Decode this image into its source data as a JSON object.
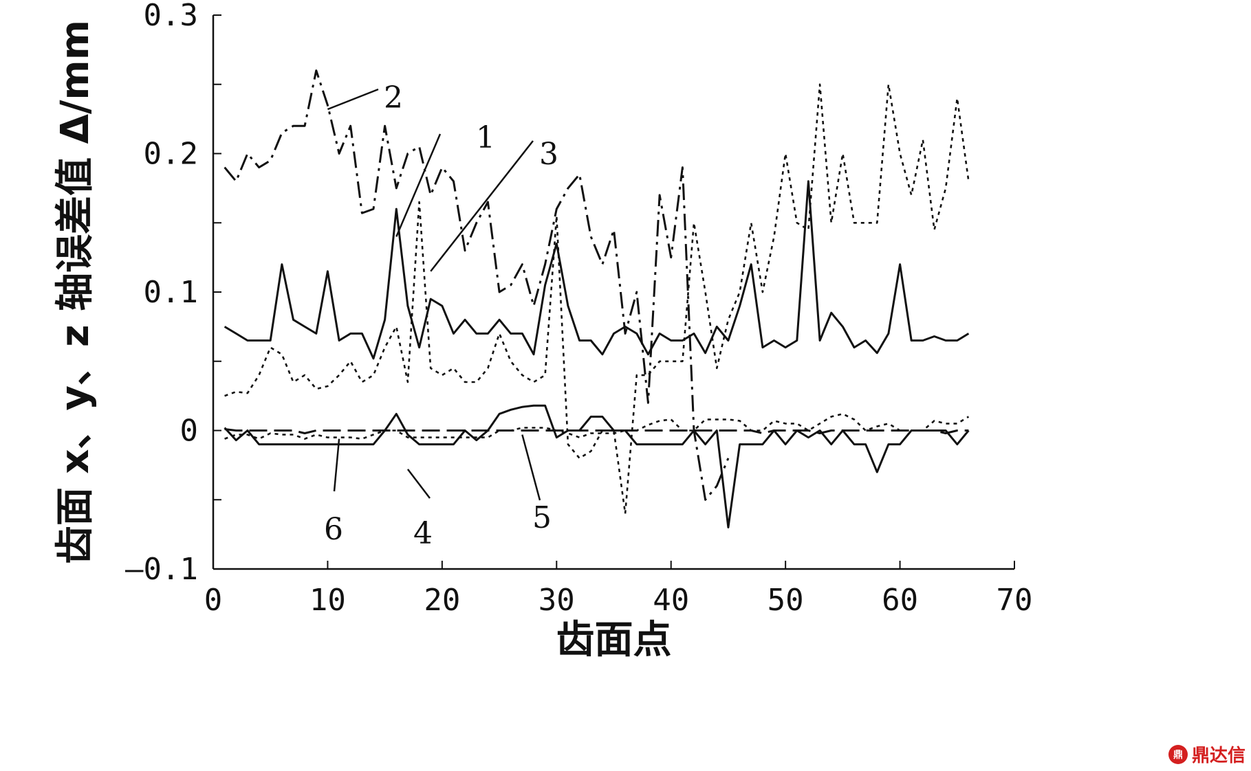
{
  "chart_data": {
    "type": "line",
    "title": "",
    "xlabel": "齿面点",
    "ylabel": "齿面 x、y、z 轴误差值 Δ/mm",
    "xlim": [
      0,
      70
    ],
    "ylim": [
      -0.1,
      0.3
    ],
    "x_ticks": [
      0,
      10,
      20,
      30,
      40,
      50,
      60,
      70
    ],
    "x_tick_labels": [
      "0",
      "10",
      "20",
      "30",
      "40",
      "50",
      "60",
      "70"
    ],
    "y_ticks": [
      -0.1,
      0,
      0.1,
      0.2,
      0.3
    ],
    "y_tick_labels": [
      "—0.1",
      "0",
      "0.1",
      "0.2",
      "0.3"
    ],
    "grid": false,
    "series": [
      {
        "name": "1",
        "style": "solid",
        "x": [
          1,
          2,
          3,
          4,
          5,
          6,
          7,
          8,
          9,
          10,
          11,
          12,
          13,
          14,
          15,
          16,
          17,
          18,
          19,
          20,
          21,
          22,
          23,
          24,
          25,
          26,
          27,
          28,
          29,
          30,
          31,
          32,
          33,
          34,
          35,
          36,
          37,
          38,
          39,
          40,
          41,
          42,
          43,
          44,
          45,
          46,
          47,
          48,
          49,
          50,
          51,
          52,
          53,
          54,
          55,
          56,
          57,
          58,
          59,
          60,
          61,
          62,
          63,
          64,
          65,
          66
        ],
        "y": [
          0.075,
          0.07,
          0.065,
          0.065,
          0.065,
          0.12,
          0.08,
          0.075,
          0.07,
          0.115,
          0.065,
          0.07,
          0.07,
          0.052,
          0.08,
          0.16,
          0.09,
          0.06,
          0.095,
          0.09,
          0.07,
          0.08,
          0.07,
          0.07,
          0.08,
          0.07,
          0.07,
          0.055,
          0.105,
          0.135,
          0.09,
          0.065,
          0.065,
          0.055,
          0.07,
          0.075,
          0.07,
          0.055,
          0.07,
          0.065,
          0.065,
          0.07,
          0.056,
          0.075,
          0.065,
          0.09,
          0.12,
          0.06,
          0.065,
          0.06,
          0.065,
          0.18,
          0.065,
          0.085,
          0.075,
          0.06,
          0.065,
          0.056,
          0.07,
          0.12,
          0.065,
          0.065,
          0.068,
          0.065,
          0.065,
          0.07
        ]
      },
      {
        "name": "2",
        "style": "dashdot",
        "x": [
          1,
          2,
          3,
          4,
          5,
          6,
          7,
          8,
          9,
          10,
          11,
          12,
          13,
          14,
          15,
          16,
          17,
          18,
          19,
          20,
          21,
          22,
          23,
          24,
          25,
          26,
          27,
          28,
          29,
          30,
          31,
          32,
          33,
          34,
          35,
          36,
          37,
          38,
          39,
          40,
          41,
          42,
          43,
          44,
          45
        ],
        "y": [
          0.19,
          0.18,
          0.2,
          0.19,
          0.195,
          0.215,
          0.22,
          0.22,
          0.26,
          0.235,
          0.2,
          0.22,
          0.157,
          0.16,
          0.22,
          0.175,
          0.2,
          0.205,
          0.17,
          0.19,
          0.18,
          0.13,
          0.15,
          0.165,
          0.1,
          0.105,
          0.12,
          0.09,
          0.12,
          0.16,
          0.175,
          0.185,
          0.14,
          0.12,
          0.145,
          0.07,
          0.1,
          0.02,
          0.17,
          0.125,
          0.19,
          0.0,
          -0.05,
          -0.04,
          -0.02
        ]
      },
      {
        "name": "3",
        "style": "dotted",
        "x": [
          1,
          2,
          3,
          4,
          5,
          6,
          7,
          8,
          9,
          10,
          11,
          12,
          13,
          14,
          15,
          16,
          17,
          18,
          19,
          20,
          21,
          22,
          23,
          24,
          25,
          26,
          27,
          28,
          29,
          30,
          31,
          32,
          33,
          34,
          35,
          36,
          37,
          38,
          39,
          40,
          41,
          42,
          43,
          44,
          45,
          46,
          47,
          48,
          49,
          50,
          51,
          52,
          53,
          54,
          55,
          56,
          57,
          58,
          59,
          60,
          61,
          62,
          63,
          64,
          65,
          66
        ],
        "y": [
          0.025,
          0.028,
          0.027,
          0.04,
          0.06,
          0.055,
          0.035,
          0.04,
          0.03,
          0.032,
          0.04,
          0.05,
          0.035,
          0.04,
          0.06,
          0.075,
          0.035,
          0.165,
          0.045,
          0.04,
          0.045,
          0.035,
          0.035,
          0.045,
          0.07,
          0.05,
          0.04,
          0.035,
          0.04,
          0.155,
          -0.01,
          -0.02,
          -0.015,
          0.0,
          0.0,
          -0.06,
          0.04,
          0.04,
          0.05,
          0.05,
          0.05,
          0.15,
          0.1,
          0.045,
          0.08,
          0.1,
          0.15,
          0.1,
          0.14,
          0.2,
          0.15,
          0.145,
          0.25,
          0.15,
          0.2,
          0.15,
          0.15,
          0.15,
          0.25,
          0.2,
          0.17,
          0.21,
          0.145,
          0.175,
          0.24,
          0.18
        ]
      },
      {
        "name": "4",
        "style": "solid",
        "x": [
          1,
          2,
          3,
          4,
          5,
          6,
          7,
          8,
          9,
          10,
          11,
          12,
          13,
          14,
          15,
          16,
          17,
          18,
          19,
          20,
          21,
          22,
          23,
          24,
          25,
          26,
          27,
          28,
          29,
          30,
          31,
          32,
          33,
          34,
          35,
          36,
          37,
          38,
          39,
          40,
          41,
          42,
          43,
          44,
          45,
          46,
          47,
          48,
          49,
          50,
          51,
          52,
          53,
          54,
          55,
          56,
          57,
          58,
          59,
          60,
          61,
          62,
          63,
          64,
          65,
          66
        ],
        "y": [
          0.002,
          -0.007,
          0.0,
          -0.01,
          -0.01,
          -0.01,
          -0.01,
          -0.01,
          -0.01,
          -0.01,
          -0.01,
          -0.01,
          -0.01,
          -0.01,
          0.0,
          0.012,
          -0.003,
          -0.01,
          -0.01,
          -0.01,
          -0.01,
          0.0,
          -0.007,
          0.0,
          0.012,
          0.015,
          0.017,
          0.018,
          0.018,
          -0.005,
          0.0,
          0.0,
          0.01,
          0.01,
          0.0,
          0.0,
          -0.01,
          -0.01,
          -0.01,
          -0.01,
          -0.01,
          0.0,
          -0.01,
          0.0,
          -0.07,
          -0.01,
          -0.01,
          -0.01,
          0.0,
          -0.01,
          0.0,
          -0.005,
          0.0,
          -0.01,
          0.0,
          -0.01,
          -0.01,
          -0.03,
          -0.01,
          -0.01,
          0.0,
          0.0,
          0.0,
          0.0,
          -0.01,
          0.0
        ]
      },
      {
        "name": "5",
        "style": "dashed",
        "x": [
          1,
          2,
          3,
          4,
          5,
          6,
          7,
          8,
          9,
          10,
          11,
          12,
          13,
          14,
          15,
          16,
          17,
          18,
          19,
          20,
          21,
          22,
          23,
          24,
          25,
          26,
          27,
          28,
          29,
          30,
          31,
          32,
          33,
          34,
          35,
          36,
          37,
          38,
          39,
          40,
          41,
          42,
          43,
          44,
          45,
          46,
          47,
          48,
          49,
          50,
          51,
          52,
          53,
          54,
          55,
          56,
          57,
          58,
          59,
          60,
          61,
          62,
          63,
          64,
          65,
          66
        ],
        "y": [
          0.001,
          0.0,
          0.0,
          0.0,
          0.0,
          0.0,
          0.0,
          -0.002,
          0.0,
          0.0,
          0.0,
          0.0,
          0.0,
          0.0,
          0.0,
          0.0,
          0.0,
          0.0,
          0.0,
          0.0,
          0.0,
          0.0,
          0.0,
          0.0,
          0.0,
          0.0,
          0.0,
          0.0,
          0.0,
          0.0,
          0.0,
          0.0,
          0.0,
          0.0,
          0.0,
          0.0,
          0.0,
          0.0,
          0.0,
          0.0,
          0.0,
          0.0,
          0.0,
          0.0,
          0.0,
          0.0,
          0.0,
          -0.002,
          0.0,
          0.0,
          0.0,
          0.0,
          -0.002,
          0.0,
          0.0,
          0.0,
          0.0,
          0.0,
          0.0,
          0.0,
          0.0,
          0.0,
          0.0,
          -0.002,
          0.0,
          0.0
        ]
      },
      {
        "name": "6",
        "style": "dotted",
        "x": [
          1,
          2,
          3,
          4,
          5,
          6,
          7,
          8,
          9,
          10,
          11,
          12,
          13,
          14,
          15,
          16,
          17,
          18,
          19,
          20,
          21,
          22,
          23,
          24,
          25,
          26,
          27,
          28,
          29,
          30,
          31,
          32,
          33,
          34,
          35,
          36,
          37,
          38,
          39,
          40,
          41,
          42,
          43,
          44,
          45,
          46,
          47,
          48,
          49,
          50,
          51,
          52,
          53,
          54,
          55,
          56,
          57,
          58,
          59,
          60,
          61,
          62,
          63,
          64,
          65,
          66
        ],
        "y": [
          -0.006,
          -0.003,
          -0.003,
          -0.006,
          -0.002,
          -0.003,
          -0.003,
          -0.006,
          -0.003,
          -0.005,
          -0.005,
          -0.005,
          -0.006,
          -0.003,
          0.0,
          0.0,
          -0.005,
          -0.005,
          -0.005,
          -0.005,
          -0.005,
          -0.005,
          -0.005,
          -0.005,
          0.0,
          0.0,
          0.002,
          0.002,
          0.002,
          0.0,
          -0.002,
          -0.005,
          -0.002,
          -0.002,
          -0.002,
          0.0,
          0.0,
          0.004,
          0.007,
          0.008,
          0.0,
          0.0,
          0.008,
          0.008,
          0.008,
          0.007,
          0.0,
          0.0,
          0.007,
          0.005,
          0.005,
          0.0,
          0.005,
          0.01,
          0.012,
          0.008,
          0.0,
          0.003,
          0.005,
          0.0,
          0.0,
          0.0,
          0.007,
          0.005,
          0.005,
          0.01
        ]
      }
    ],
    "callouts": [
      {
        "text": "1",
        "point_x": 16,
        "point_y": 0.14
      },
      {
        "text": "2",
        "point_x": 10,
        "point_y": 0.232
      },
      {
        "text": "3",
        "point_x": 19,
        "point_y": 0.115
      },
      {
        "text": "4",
        "point_x": 17,
        "point_y": -0.028
      },
      {
        "text": "5",
        "point_x": 27,
        "point_y": -0.003
      },
      {
        "text": "6",
        "point_x": 11,
        "point_y": -0.006
      }
    ]
  },
  "watermark": {
    "logo_text": "鼎",
    "text": "鼎达信",
    "color": "#d42020"
  }
}
